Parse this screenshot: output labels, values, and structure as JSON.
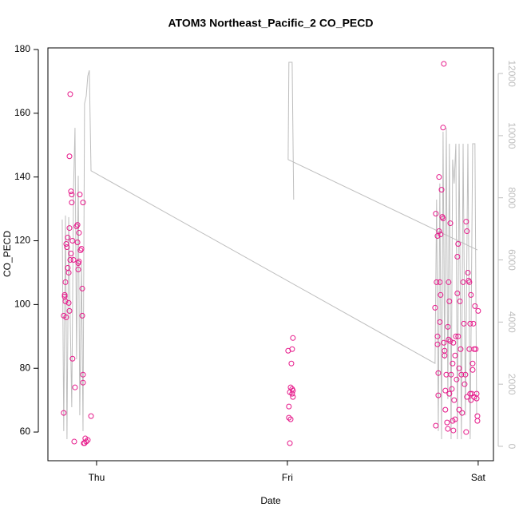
{
  "chart_data": {
    "type": "scatter",
    "title": "ATOM3 Northeast_Pacific_2 CO_PECD",
    "x_label": "Date",
    "y_label": "CO_PECD",
    "xlim": [
      -0.255,
      2.08
    ],
    "xticks": [
      {
        "value": 0,
        "label": "Thu"
      },
      {
        "value": 1,
        "label": "Fri"
      },
      {
        "value": 2,
        "label": "Sat"
      }
    ],
    "ylim": [
      51,
      180.5
    ],
    "yticks": [
      60,
      80,
      100,
      120,
      140,
      160,
      180
    ],
    "y2lim": [
      -463,
      12824
    ],
    "y2ticks": [
      0,
      2000,
      4000,
      6000,
      8000,
      10000,
      12000
    ],
    "series": [
      {
        "type": "scatter",
        "color": "#e6198a",
        "x": [
          -0.172,
          -0.172,
          -0.167,
          -0.167,
          -0.163,
          -0.163,
          -0.159,
          -0.159,
          -0.155,
          -0.151,
          -0.151,
          -0.146,
          -0.146,
          -0.142,
          -0.142,
          -0.142,
          -0.138,
          -0.138,
          -0.134,
          -0.134,
          -0.13,
          -0.13,
          -0.126,
          -0.126,
          -0.121,
          -0.117,
          -0.113,
          -0.105,
          -0.1,
          -0.1,
          -0.096,
          -0.096,
          -0.092,
          -0.092,
          -0.088,
          -0.084,
          -0.079,
          -0.075,
          -0.075,
          -0.071,
          -0.071,
          -0.071,
          -0.067,
          -0.063,
          -0.059,
          -0.054,
          -0.046,
          -0.029,
          1.004,
          1.008,
          1.008,
          1.013,
          1.013,
          1.017,
          1.017,
          1.021,
          1.025,
          1.025,
          1.025,
          1.029,
          1.029,
          1.029,
          1.774,
          1.778,
          1.778,
          1.782,
          1.787,
          1.787,
          1.787,
          1.791,
          1.791,
          1.795,
          1.795,
          1.799,
          1.799,
          1.803,
          1.803,
          1.808,
          1.812,
          1.816,
          1.816,
          1.82,
          1.82,
          1.824,
          1.824,
          1.828,
          1.828,
          1.833,
          1.837,
          1.841,
          1.841,
          1.845,
          1.845,
          1.849,
          1.849,
          1.854,
          1.854,
          1.858,
          1.862,
          1.866,
          1.866,
          1.87,
          1.87,
          1.874,
          1.879,
          1.879,
          1.883,
          1.887,
          1.891,
          1.891,
          1.895,
          1.895,
          1.9,
          1.9,
          1.904,
          1.908,
          1.912,
          1.916,
          1.921,
          1.925,
          1.929,
          1.933,
          1.937,
          1.937,
          1.941,
          1.941,
          1.946,
          1.95,
          1.954,
          1.954,
          1.958,
          1.958,
          1.962,
          1.962,
          1.967,
          1.971,
          1.971,
          1.975,
          1.979,
          1.979,
          1.983,
          1.987,
          1.992,
          1.996,
          1.996,
          2.0,
          1.992
        ],
        "values": [
          66,
          96.5,
          102.5,
          103,
          101,
          107,
          119,
          96,
          118,
          121,
          111.5,
          110,
          100.5,
          98,
          146.5,
          124,
          166,
          114,
          116,
          135.5,
          134.5,
          132,
          120,
          83,
          114,
          57,
          74,
          124.5,
          125,
          119.5,
          113,
          111,
          113.5,
          122.5,
          134.5,
          117,
          117.5,
          105,
          96.5,
          132,
          78,
          75.5,
          56.5,
          56.5,
          58,
          57,
          57.5,
          65,
          85.5,
          68,
          64.5,
          56.5,
          72.5,
          64,
          74,
          81.5,
          72,
          86,
          73.5,
          89.5,
          71,
          73,
          99,
          62,
          128.5,
          107,
          121.5,
          90,
          87.5,
          71.5,
          78.5,
          123,
          140,
          107,
          94.5,
          103,
          122,
          136,
          127.5,
          155.5,
          127,
          175.5,
          88,
          84,
          85.5,
          73,
          67,
          78,
          63,
          93,
          61,
          107,
          89,
          101,
          72,
          88.5,
          125.5,
          78,
          73.5,
          81.5,
          63.5,
          88,
          60.5,
          70,
          84,
          64,
          90,
          76.5,
          103.5,
          115,
          119,
          90,
          80,
          67,
          101,
          86,
          78,
          66,
          107,
          94,
          75,
          78,
          126,
          60,
          123,
          71,
          110,
          107.5,
          107,
          86,
          94,
          72,
          103,
          70,
          72,
          81.5,
          79.5,
          94,
          86,
          71,
          99.5,
          86,
          72,
          63.5,
          65,
          98,
          70.5
        ]
      },
      {
        "type": "line",
        "axis": "y2",
        "color": "#bebebe",
        "x": [
          -0.18,
          -0.172,
          -0.163,
          -0.155,
          -0.146,
          -0.138,
          -0.13,
          -0.121,
          -0.113,
          -0.105,
          -0.096,
          -0.088,
          -0.079,
          -0.071,
          -0.063,
          -0.054,
          -0.046,
          -0.038,
          -0.029,
          1.774,
          1.782,
          1.791,
          1.799,
          1.808,
          1.816,
          1.824,
          1.833,
          1.841,
          1.849,
          1.858,
          1.866,
          1.874,
          1.883,
          1.891,
          1.9,
          1.912,
          1.921,
          1.933,
          1.946,
          1.958,
          1.971,
          1.983,
          1.992,
          null,
          1.033,
          1.025,
          1.008,
          1.004,
          1.996
        ],
        "values": [
          7300,
          490,
          7430,
          230,
          7380,
          4090,
          1260,
          8200,
          10250,
          2800,
          8710,
          1000,
          5890,
          490,
          11030,
          11280,
          11920,
          12100,
          8870,
          2670,
          7940,
          490,
          8460,
          230,
          10130,
          2800,
          10250,
          1520,
          9740,
          230,
          9230,
          8460,
          9740,
          230,
          9740,
          230,
          9740,
          1000,
          9740,
          230,
          9740,
          9740,
          1000,
          null,
          7940,
          12360,
          12360,
          9230,
          6320
        ]
      }
    ]
  }
}
